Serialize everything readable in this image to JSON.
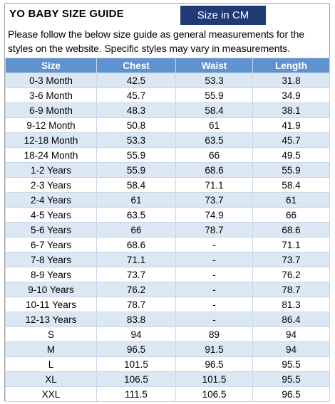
{
  "title": "YO BABY SIZE GUIDE",
  "unit_badge": "Size in CM",
  "intro": "Please follow the below size guide as general measurements for the styles on the website. Specific styles may vary in measurements.",
  "table": {
    "headers": [
      "Size",
      "Chest",
      "Waist",
      "Length"
    ],
    "rows": [
      [
        "0-3 Month",
        "42.5",
        "53.3",
        "31.8"
      ],
      [
        "3-6 Month",
        "45.7",
        "55.9",
        "34.9"
      ],
      [
        "6-9 Month",
        "48.3",
        "58.4",
        "38.1"
      ],
      [
        "9-12 Month",
        "50.8",
        "61",
        "41.9"
      ],
      [
        "12-18 Month",
        "53.3",
        "63.5",
        "45.7"
      ],
      [
        "18-24 Month",
        "55.9",
        "66",
        "49.5"
      ],
      [
        "1-2 Years",
        "55.9",
        "68.6",
        "55.9"
      ],
      [
        "2-3 Years",
        "58.4",
        "71.1",
        "58.4"
      ],
      [
        "2-4 Years",
        "61",
        "73.7",
        "61"
      ],
      [
        "4-5 Years",
        "63.5",
        "74.9",
        "66"
      ],
      [
        "5-6 Years",
        "66",
        "78.7",
        "68.6"
      ],
      [
        "6-7 Years",
        "68.6",
        "-",
        "71.1"
      ],
      [
        "7-8 Years",
        "71.1",
        "-",
        "73.7"
      ],
      [
        "8-9 Years",
        "73.7",
        "-",
        "76.2"
      ],
      [
        "9-10 Years",
        "76.2",
        "-",
        "78.7"
      ],
      [
        "10-11 Years",
        "78.7",
        "-",
        "81.3"
      ],
      [
        "12-13 Years",
        "83.8",
        "-",
        "86.4"
      ],
      [
        "S",
        "94",
        "89",
        "94"
      ],
      [
        "M",
        "96.5",
        "91.5",
        "94"
      ],
      [
        "L",
        "101.5",
        "96.5",
        "95.5"
      ],
      [
        "XL",
        "106.5",
        "101.5",
        "95.5"
      ],
      [
        "XXL",
        "111.5",
        "106.5",
        "96.5"
      ]
    ]
  },
  "colors": {
    "header_bg": "#5f93d0",
    "badge_bg": "#1f3a74",
    "stripe_bg": "#dce7f4"
  }
}
